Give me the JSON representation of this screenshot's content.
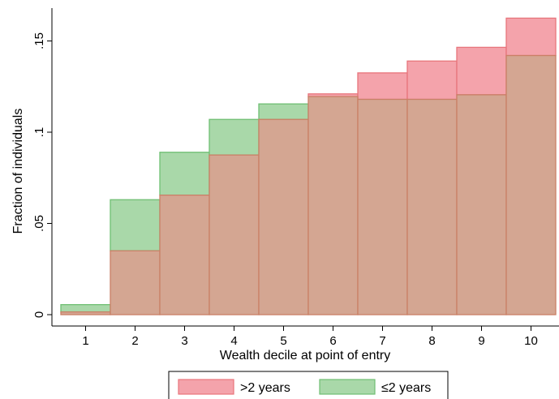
{
  "chart_data": {
    "type": "bar",
    "title": "",
    "xlabel": "Wealth decile at point of entry",
    "ylabel": "Fraction of individuals",
    "categories": [
      "1",
      "2",
      "3",
      "4",
      "5",
      "6",
      "7",
      "8",
      "9",
      "10"
    ],
    "ylim": [
      0,
      0.17
    ],
    "yticks": [
      {
        "value": 0,
        "label": "0"
      },
      {
        "value": 0.05,
        "label": ".05"
      },
      {
        "value": 0.1,
        "label": ".1"
      },
      {
        "value": 0.15,
        "label": ".15"
      }
    ],
    "grid": false,
    "legend_position": "bottom",
    "series": [
      {
        "name": ">2 years",
        "color": "#f4a3ab",
        "edge": "#e8757c",
        "values": [
          0.0015,
          0.035,
          0.0655,
          0.0875,
          0.107,
          0.121,
          0.1325,
          0.139,
          0.1465,
          0.1625
        ]
      },
      {
        "name": "≤2 years",
        "color": "#a9d8a9",
        "edge": "#6fbf73",
        "values": [
          0.0055,
          0.063,
          0.089,
          0.107,
          0.1155,
          0.1195,
          0.118,
          0.118,
          0.1205,
          0.142
        ]
      }
    ],
    "overlap_color": "#d4a692",
    "overlap_edge": "#c98066"
  }
}
